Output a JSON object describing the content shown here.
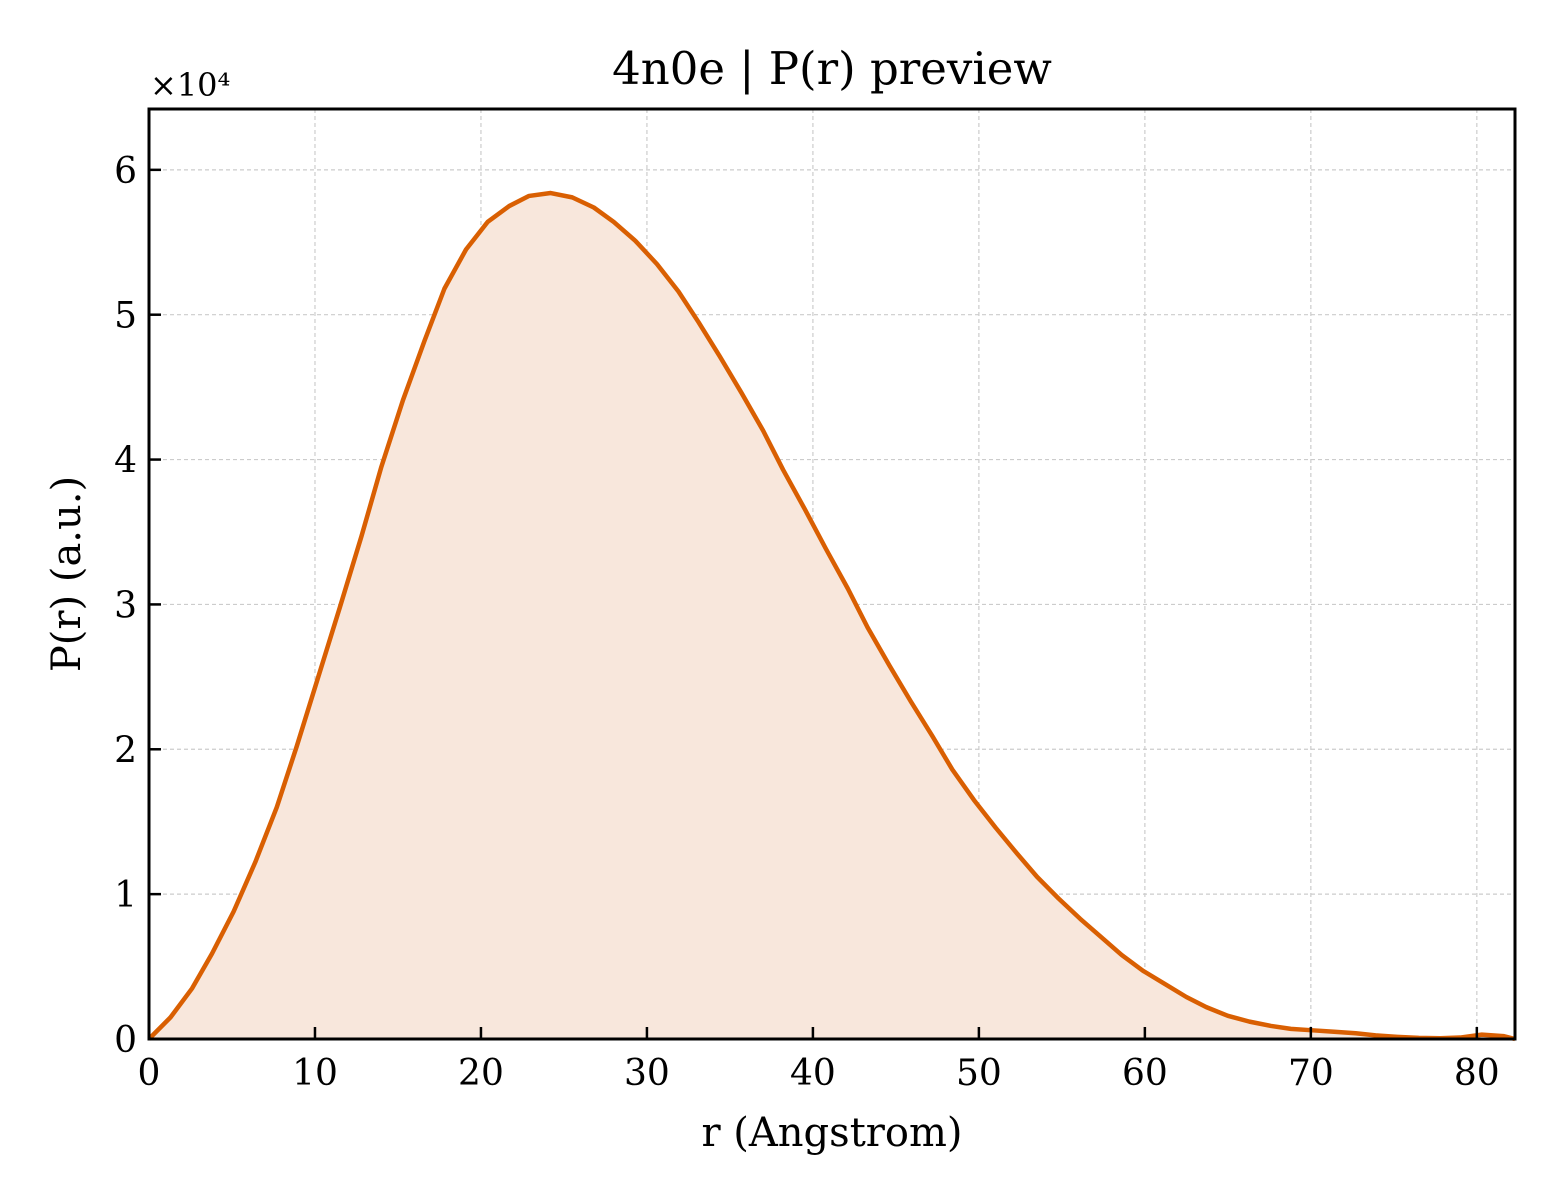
{
  "chart_data": {
    "type": "area",
    "title": "4n0e | P(r) preview",
    "xlabel": "r (Angstrom)",
    "ylabel": "P(r) (a.u.)",
    "y_multiplier_text": "×10⁴",
    "xlim": [
      0,
      82.3
    ],
    "ylim": [
      0,
      6.42
    ],
    "y_scale_factor": 10000,
    "xticks": [
      0,
      10,
      20,
      30,
      40,
      50,
      60,
      70,
      80
    ],
    "yticks": [
      0,
      1,
      2,
      3,
      4,
      5,
      6
    ],
    "grid": true,
    "colors": {
      "line": "#d95f02",
      "fill": "#f8e7dc"
    },
    "series": [
      {
        "x": [
          0,
          1.3,
          2.6,
          3.8,
          5.1,
          6.4,
          7.7,
          8.9,
          10.2,
          11.5,
          12.8,
          14.0,
          15.3,
          16.6,
          17.8,
          19.1,
          20.4,
          21.7,
          22.9,
          24.2,
          25.5,
          26.8,
          28.0,
          29.3,
          30.6,
          31.9,
          33.1,
          34.4,
          35.7,
          37.0,
          38.2,
          39.5,
          40.8,
          42.1,
          43.3,
          44.6,
          45.9,
          47.2,
          48.4,
          49.7,
          51.0,
          52.3,
          53.5,
          54.8,
          56.1,
          57.4,
          58.6,
          59.9,
          61.2,
          62.5,
          63.7,
          65.0,
          66.3,
          67.6,
          68.8,
          70.1,
          71.4,
          72.7,
          73.9,
          75.2,
          76.5,
          77.8,
          79.0,
          80.3,
          81.6,
          82.3
        ],
        "y": [
          0.0,
          0.15,
          0.35,
          0.59,
          0.88,
          1.22,
          1.6,
          2.02,
          2.5,
          2.98,
          3.47,
          3.95,
          4.41,
          4.82,
          5.18,
          5.45,
          5.64,
          5.75,
          5.82,
          5.84,
          5.81,
          5.74,
          5.64,
          5.51,
          5.35,
          5.16,
          4.95,
          4.71,
          4.46,
          4.2,
          3.93,
          3.66,
          3.38,
          3.11,
          2.84,
          2.58,
          2.33,
          2.09,
          1.86,
          1.65,
          1.46,
          1.28,
          1.12,
          0.97,
          0.83,
          0.7,
          0.58,
          0.47,
          0.38,
          0.29,
          0.22,
          0.16,
          0.12,
          0.09,
          0.07,
          0.06,
          0.05,
          0.04,
          0.025,
          0.015,
          0.008,
          0.005,
          0.01,
          0.03,
          0.02,
          0.0
        ]
      }
    ]
  }
}
